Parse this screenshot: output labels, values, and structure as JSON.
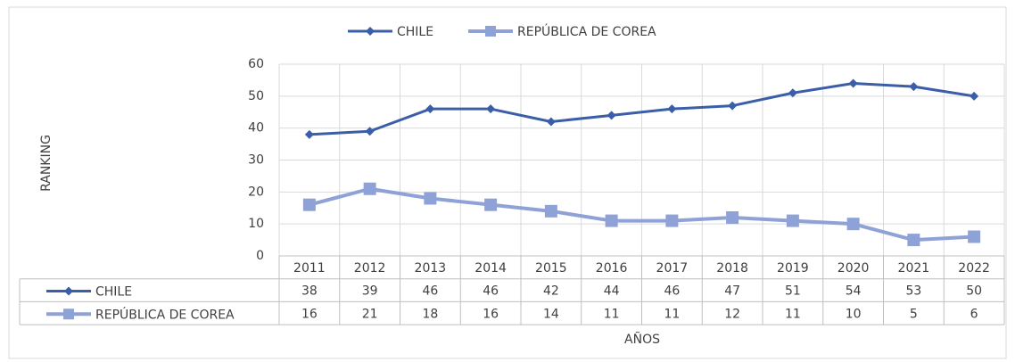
{
  "chart_data": {
    "type": "line",
    "categories": [
      "2011",
      "2012",
      "2013",
      "2014",
      "2015",
      "2016",
      "2017",
      "2018",
      "2019",
      "2020",
      "2021",
      "2022"
    ],
    "series": [
      {
        "name": "CHILE",
        "color": "#3b5ea8",
        "marker": "diamond",
        "values": [
          38,
          39,
          46,
          46,
          42,
          44,
          46,
          47,
          51,
          54,
          53,
          50
        ]
      },
      {
        "name": "REPÚBLICA DE COREA",
        "color": "#8fa2d8",
        "marker": "square",
        "values": [
          16,
          21,
          18,
          16,
          14,
          11,
          11,
          12,
          11,
          10,
          5,
          6
        ]
      }
    ],
    "ylim": [
      0,
      60
    ],
    "yticks": [
      0,
      10,
      20,
      30,
      40,
      50,
      60
    ],
    "x_label": "AÑOS",
    "y_label": "RANKING",
    "grid": true,
    "legend": "top",
    "data_table": true
  }
}
